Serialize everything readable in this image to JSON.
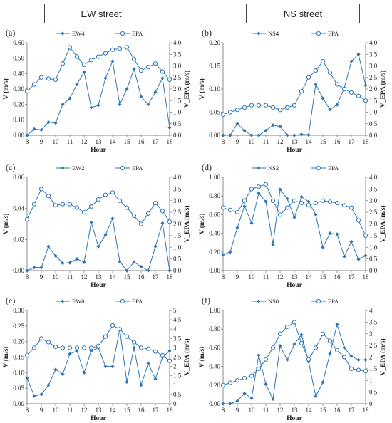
{
  "columns": {
    "left": "EW street",
    "right": "NS street"
  },
  "colors": {
    "series_primary": "#2e75b6",
    "series_epa": "#2e75b6",
    "axis": "#7f7f7f",
    "grid": "#d9d9d9"
  },
  "chart_data": [
    {
      "id": "a",
      "panel_label": "(a)",
      "type": "line",
      "x": [
        8,
        8.5,
        9,
        9.5,
        10,
        10.5,
        11,
        11.5,
        12,
        12.5,
        13,
        13.5,
        14,
        14.5,
        15,
        15.5,
        16,
        16.5,
        17,
        17.5,
        18
      ],
      "xticks": [
        8,
        9,
        10,
        11,
        12,
        13,
        14,
        15,
        16,
        17,
        18
      ],
      "xlabel": "Hour",
      "ylabel": "V (m/s)",
      "y2label": "V_EPA (m/s)",
      "ylim": [
        0,
        0.6
      ],
      "yticks": [
        "0.00",
        "0.10",
        "0.20",
        "0.30",
        "0.40",
        "0.50",
        "0.60"
      ],
      "y2lim": [
        0,
        4.0
      ],
      "y2ticks": [
        "0.0",
        "0.5",
        "1.0",
        "1.5",
        "2.0",
        "2.5",
        "3.0",
        "3.5",
        "4.0"
      ],
      "series": [
        {
          "name": "EW4",
          "axis": "left",
          "marker": "filled",
          "values": [
            0.0,
            0.04,
            0.035,
            0.085,
            0.08,
            0.2,
            0.24,
            0.33,
            0.41,
            0.18,
            0.195,
            0.37,
            0.48,
            0.2,
            0.3,
            0.43,
            0.25,
            0.2,
            0.28,
            0.37,
            0.05
          ]
        },
        {
          "name": "EPA",
          "axis": "right",
          "marker": "open",
          "values": [
            1.9,
            2.2,
            2.5,
            2.45,
            2.4,
            3.1,
            3.8,
            3.4,
            3.05,
            3.25,
            3.4,
            3.55,
            3.7,
            3.75,
            3.8,
            3.3,
            2.8,
            2.95,
            3.1,
            2.75,
            2.4
          ]
        }
      ]
    },
    {
      "id": "b",
      "panel_label": "(b)",
      "type": "line",
      "x": [
        8,
        8.5,
        9,
        9.5,
        10,
        10.5,
        11,
        11.5,
        12,
        12.5,
        13,
        13.5,
        14,
        14.5,
        15,
        15.5,
        16,
        16.5,
        17,
        17.5,
        18
      ],
      "xticks": [
        8,
        9,
        10,
        11,
        12,
        13,
        14,
        15,
        16,
        17,
        18
      ],
      "xlabel": "Hour",
      "ylabel": "V (m/s)",
      "y2label": "V_EPA (m/s)",
      "ylim": [
        0,
        0.2
      ],
      "yticks": [
        "0.00",
        "0.05",
        "0.10",
        "0.15",
        "0.20"
      ],
      "y2lim": [
        0,
        4.0
      ],
      "y2ticks": [
        "0.0",
        "0.5",
        "1.0",
        "1.5",
        "2.0",
        "2.5",
        "3.0",
        "3.5",
        "4.0"
      ],
      "series": [
        {
          "name": "NS4",
          "axis": "left",
          "marker": "filled",
          "values": [
            0.0,
            0.0,
            0.025,
            0.01,
            0.0,
            0.0,
            0.01,
            0.022,
            0.019,
            0.0,
            0.0,
            0.002,
            0.001,
            0.11,
            0.08,
            0.056,
            0.066,
            0.102,
            0.16,
            0.175,
            0.108
          ]
        },
        {
          "name": "EPA",
          "axis": "right",
          "marker": "open",
          "values": [
            0.9,
            1.0,
            1.1,
            1.2,
            1.3,
            1.3,
            1.3,
            1.2,
            1.1,
            1.2,
            1.3,
            1.9,
            2.5,
            2.8,
            3.2,
            2.7,
            2.2,
            2.0,
            1.85,
            1.7,
            1.5
          ]
        }
      ]
    },
    {
      "id": "c",
      "panel_label": "(c)",
      "type": "line",
      "x": [
        8,
        8.5,
        9,
        9.5,
        10,
        10.5,
        11,
        11.5,
        12,
        12.5,
        13,
        13.5,
        14,
        14.5,
        15,
        15.5,
        16,
        16.5,
        17,
        17.5,
        18
      ],
      "xticks": [
        8,
        9,
        10,
        11,
        12,
        13,
        14,
        15,
        16,
        17,
        18
      ],
      "xlabel": "Hour",
      "ylabel": "V (m/s)",
      "y2label": "V_EPA (m/s)",
      "ylim": [
        0,
        0.06
      ],
      "yticks": [
        "0.00",
        "0.02",
        "0.04",
        "0.06"
      ],
      "y2lim": [
        0,
        4.0
      ],
      "y2ticks": [
        "0.0",
        "0.5",
        "1.0",
        "1.5",
        "2.0",
        "2.5",
        "3.0",
        "3.5",
        "4.0"
      ],
      "series": [
        {
          "name": "EW2",
          "axis": "left",
          "marker": "filled",
          "values": [
            0.0,
            0.002,
            0.002,
            0.0155,
            0.0095,
            0.0048,
            0.005,
            0.0075,
            0.0053,
            0.031,
            0.0155,
            0.023,
            0.0335,
            0.0058,
            0.0,
            0.0055,
            0.0025,
            0.0,
            0.0155,
            0.0305,
            0.0
          ]
        },
        {
          "name": "EPA",
          "axis": "right",
          "marker": "open",
          "values": [
            2.2,
            2.85,
            3.5,
            3.2,
            2.8,
            2.85,
            2.85,
            2.7,
            2.5,
            2.75,
            3.05,
            3.25,
            3.35,
            3.0,
            2.7,
            2.35,
            2.0,
            2.45,
            2.9,
            2.55,
            2.1
          ]
        }
      ]
    },
    {
      "id": "d",
      "panel_label": "(d)",
      "type": "line",
      "x": [
        8,
        8.5,
        9,
        9.5,
        10,
        10.5,
        11,
        11.5,
        12,
        12.5,
        13,
        13.5,
        14,
        14.5,
        15,
        15.5,
        16,
        16.5,
        17,
        17.5,
        18
      ],
      "xticks": [
        8,
        9,
        10,
        11,
        12,
        13,
        14,
        15,
        16,
        17,
        18
      ],
      "xlabel": "Hour",
      "ylabel": "V (m/s)",
      "y2label": "V_EPA (m/s)",
      "ylim": [
        0,
        1.0
      ],
      "yticks": [
        "0.00",
        "0.20",
        "0.40",
        "0.60",
        "0.80",
        "1.00"
      ],
      "y2lim": [
        0,
        4.0
      ],
      "y2ticks": [
        "0.0",
        "0.5",
        "1.0",
        "1.5",
        "2.0",
        "2.5",
        "3.0",
        "3.5",
        "4.0"
      ],
      "series": [
        {
          "name": "NS2",
          "axis": "left",
          "marker": "filled",
          "values": [
            0.17,
            0.2,
            0.46,
            0.69,
            0.51,
            0.83,
            0.74,
            0.28,
            0.87,
            0.77,
            0.57,
            0.79,
            0.74,
            0.6,
            0.25,
            0.4,
            0.39,
            0.15,
            0.31,
            0.12,
            0.16
          ]
        },
        {
          "name": "EPA",
          "axis": "right",
          "marker": "open",
          "values": [
            2.7,
            2.6,
            2.5,
            3.0,
            3.5,
            3.6,
            3.7,
            3.0,
            2.4,
            2.7,
            3.0,
            2.9,
            2.8,
            2.9,
            3.0,
            2.95,
            2.9,
            2.8,
            2.7,
            2.15,
            1.5
          ]
        }
      ]
    },
    {
      "id": "e",
      "panel_label": "(e)",
      "type": "line",
      "x": [
        8,
        8.5,
        9,
        9.5,
        10,
        10.5,
        11,
        11.5,
        12,
        12.5,
        13,
        13.5,
        14,
        14.5,
        15,
        15.5,
        16,
        16.5,
        17,
        17.5,
        18
      ],
      "xticks": [
        8,
        9,
        10,
        11,
        12,
        13,
        14,
        15,
        16,
        17,
        18
      ],
      "xlabel": "Hour",
      "ylabel": "V (m/s)",
      "y2label": "V_EPA (m/s)",
      "ylim": [
        0,
        0.3
      ],
      "yticks": [
        "0.00",
        "0.05",
        "0.10",
        "0.15",
        "0.20",
        "0.25",
        "0.30"
      ],
      "y2lim": [
        0,
        5.0
      ],
      "y2ticks": [
        "0",
        "0.5",
        "1",
        "1.5",
        "2",
        "2.5",
        "3",
        "3.5",
        "4",
        "4.5",
        "5"
      ],
      "series": [
        {
          "name": "EW0",
          "axis": "left",
          "marker": "filled",
          "values": [
            0.083,
            0.025,
            0.03,
            0.06,
            0.11,
            0.095,
            0.16,
            0.17,
            0.1,
            0.17,
            0.18,
            0.12,
            0.12,
            0.24,
            0.07,
            0.18,
            0.06,
            0.13,
            0.08,
            0.15,
            0.17
          ]
        },
        {
          "name": "EPA",
          "axis": "right",
          "marker": "open",
          "values": [
            2.6,
            3.0,
            3.5,
            3.3,
            3.05,
            3.0,
            3.0,
            3.0,
            3.0,
            3.0,
            3.1,
            3.6,
            4.2,
            4.0,
            3.6,
            3.3,
            3.0,
            2.95,
            2.8,
            2.6,
            2.3
          ]
        }
      ]
    },
    {
      "id": "f",
      "panel_label": "(f)",
      "type": "line",
      "x": [
        8,
        8.5,
        9,
        9.5,
        10,
        10.5,
        11,
        11.5,
        12,
        12.5,
        13,
        13.5,
        14,
        14.5,
        15,
        15.5,
        16,
        16.5,
        17,
        17.5,
        18
      ],
      "xticks": [
        8,
        9,
        10,
        11,
        12,
        13,
        14,
        15,
        16,
        17,
        18
      ],
      "xlabel": "Hour",
      "ylabel": "V (m/s)",
      "y2label": "V_EPA (m/s)",
      "ylim": [
        0,
        1.0
      ],
      "yticks": [
        "0.00",
        "0.20",
        "0.40",
        "0.60",
        "0.80",
        "1.00"
      ],
      "y2lim": [
        0,
        4.0
      ],
      "y2ticks": [
        "0",
        "0.5",
        "1",
        "1.5",
        "2",
        "2.5",
        "3",
        "3.5",
        "4"
      ],
      "series": [
        {
          "name": "NS0",
          "axis": "left",
          "marker": "filled",
          "values": [
            0.0,
            0.0,
            0.03,
            0.11,
            0.06,
            0.52,
            0.21,
            0.05,
            0.62,
            0.47,
            0.64,
            0.74,
            0.45,
            0.08,
            0.23,
            0.54,
            0.85,
            0.6,
            0.51,
            0.47,
            0.47
          ]
        },
        {
          "name": "EPA",
          "axis": "right",
          "marker": "open",
          "values": [
            0.8,
            0.9,
            1.0,
            1.1,
            1.2,
            1.5,
            1.9,
            2.4,
            3.0,
            3.3,
            3.5,
            2.6,
            1.9,
            2.4,
            3.0,
            2.7,
            2.3,
            2.0,
            1.5,
            1.45,
            1.4
          ]
        }
      ]
    }
  ]
}
